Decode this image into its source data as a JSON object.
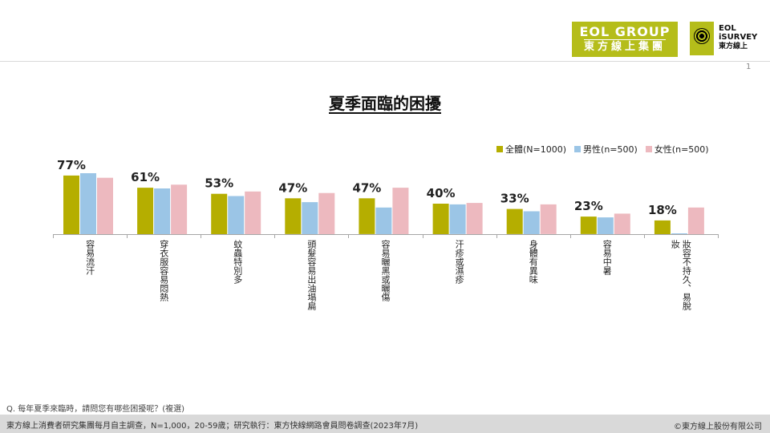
{
  "header": {
    "logo_main": "EOL GROUP",
    "logo_sub": "東方線上集團",
    "survey_logo_line1": "EOL",
    "survey_logo_line2": "iSURVEY",
    "survey_logo_line3": "東方線上",
    "slide_number": "1"
  },
  "colors": {
    "all": "#b5ae00",
    "male": "#9bc5e6",
    "female": "#edb9bf",
    "brand": "#b5bd1a"
  },
  "chart_data": {
    "type": "bar",
    "title": "夏季面臨的困擾",
    "categories": [
      "容易流汗",
      "穿衣服容易悶熱",
      "蚊蟲特別多",
      "頭髮容易出油塌扁",
      "容易曬黑或曬傷",
      "汗疹或濕疹",
      "身體有異味",
      "容易中暑",
      "妝容不持久、易脫妝"
    ],
    "category_label_lines": [
      [
        "容易流汗"
      ],
      [
        "穿衣服容易悶熱"
      ],
      [
        "蚊蟲特別多"
      ],
      [
        "頭髮容易出油塌扁"
      ],
      [
        "容易曬黑或曬傷"
      ],
      [
        "汗疹或濕疹"
      ],
      [
        "身體有異味"
      ],
      [
        "容易中暑"
      ],
      [
        "妝容不持久、易脫",
        "妝"
      ]
    ],
    "series": [
      {
        "name": "全體(N=1000)",
        "values": [
          77,
          61,
          53,
          47,
          47,
          40,
          33,
          23,
          18
        ]
      },
      {
        "name": "男性(n=500)",
        "values": [
          80,
          60,
          50,
          42,
          35,
          39,
          30,
          22,
          1
        ]
      },
      {
        "name": "女性(n=500)",
        "values": [
          74,
          65,
          56,
          54,
          61,
          41,
          39,
          27,
          35
        ]
      }
    ],
    "data_labels": [
      "77%",
      "61%",
      "53%",
      "47%",
      "47%",
      "40%",
      "33%",
      "23%",
      "18%"
    ],
    "ylim": [
      0,
      100
    ],
    "grid": false,
    "legend": "top-right"
  },
  "footnote": {
    "question": "Q. 每年夏季來臨時，請問您有哪些困擾呢？(複選)",
    "source": "東方線上消費者研究集團每月自主調查，N=1,000，20-59歲；研究執行：東方快線網路會員問卷調查(2023年7月)",
    "copyright": "©東方線上股份有限公司"
  }
}
